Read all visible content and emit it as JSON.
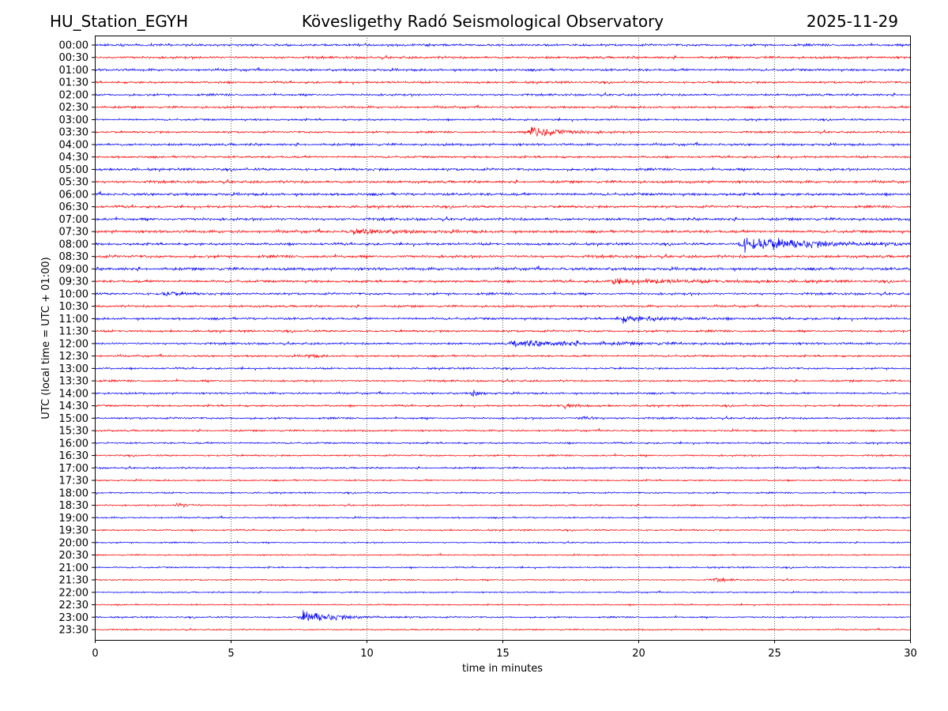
{
  "chart_data": {
    "type": "line",
    "title_left": "HU_Station_EGYH",
    "title_center": "Kövesligethy Radó Seismological Observatory",
    "title_right": "2025-11-29",
    "xlabel": "time in minutes",
    "ylabel": "UTC (local time = UTC + 01:00)",
    "xlim": [
      0,
      30
    ],
    "xticks": [
      0,
      5,
      10,
      15,
      20,
      25,
      30
    ],
    "grid": "vertical dotted at x ticks",
    "row_labels": [
      "00:00",
      "00:30",
      "01:00",
      "01:30",
      "02:00",
      "02:30",
      "03:00",
      "03:30",
      "04:00",
      "04:30",
      "05:00",
      "05:30",
      "06:00",
      "06:30",
      "07:00",
      "07:30",
      "08:00",
      "08:30",
      "09:00",
      "09:30",
      "10:00",
      "10:30",
      "11:00",
      "11:30",
      "12:00",
      "12:30",
      "13:00",
      "13:30",
      "14:00",
      "14:30",
      "15:00",
      "15:30",
      "16:00",
      "16:30",
      "17:00",
      "17:30",
      "18:00",
      "18:30",
      "19:00",
      "19:30",
      "20:00",
      "20:30",
      "21:00",
      "21:30",
      "22:00",
      "22:30",
      "23:00",
      "23:30"
    ],
    "colors": [
      "#0000ff",
      "#ff0000"
    ],
    "noise_levels": [
      1.2,
      1.2,
      1.2,
      1.1,
      1.1,
      1.1,
      1.0,
      1.0,
      1.2,
      1.1,
      1.3,
      1.3,
      1.4,
      1.3,
      1.4,
      1.4,
      1.3,
      1.4,
      1.5,
      1.3,
      1.2,
      1.1,
      1.2,
      1.1,
      1.1,
      1.0,
      1.0,
      1.0,
      1.0,
      1.0,
      1.0,
      0.9,
      0.9,
      0.9,
      0.9,
      0.8,
      0.8,
      0.8,
      0.8,
      0.8,
      0.7,
      0.7,
      0.8,
      0.7,
      0.7,
      0.7,
      0.8,
      0.7
    ],
    "events": [
      {
        "row": "03:30",
        "start_min": 16.05,
        "amplitude": 9,
        "decay_min": 0.9
      },
      {
        "row": "07:30",
        "start_min": 9.4,
        "amplitude": 2.5,
        "decay_min": 1.5
      },
      {
        "row": "08:00",
        "start_min": 23.8,
        "amplitude": 8,
        "decay_min": 2.5
      },
      {
        "row": "09:30",
        "start_min": 19.0,
        "amplitude": 2.5,
        "decay_min": 3.0
      },
      {
        "row": "10:00",
        "start_min": 2.5,
        "amplitude": 2.5,
        "decay_min": 0.6
      },
      {
        "row": "11:00",
        "start_min": 19.3,
        "amplitude": 3.5,
        "decay_min": 1.5
      },
      {
        "row": "12:00",
        "start_min": 15.4,
        "amplitude": 3.5,
        "decay_min": 3.0
      },
      {
        "row": "12:30",
        "start_min": 7.8,
        "amplitude": 2.5,
        "decay_min": 0.3
      },
      {
        "row": "14:00",
        "start_min": 13.9,
        "amplitude": 3.5,
        "decay_min": 0.3
      },
      {
        "row": "14:30",
        "start_min": 17.2,
        "amplitude": 4,
        "decay_min": 0.4
      },
      {
        "row": "15:00",
        "start_min": 17.9,
        "amplitude": 2.5,
        "decay_min": 0.4
      },
      {
        "row": "18:30",
        "start_min": 3.0,
        "amplitude": 2.5,
        "decay_min": 0.5
      },
      {
        "row": "21:30",
        "start_min": 22.8,
        "amplitude": 2.5,
        "decay_min": 0.4
      },
      {
        "row": "23:00",
        "start_min": 7.65,
        "amplitude": 6.5,
        "decay_min": 1.2
      }
    ]
  }
}
